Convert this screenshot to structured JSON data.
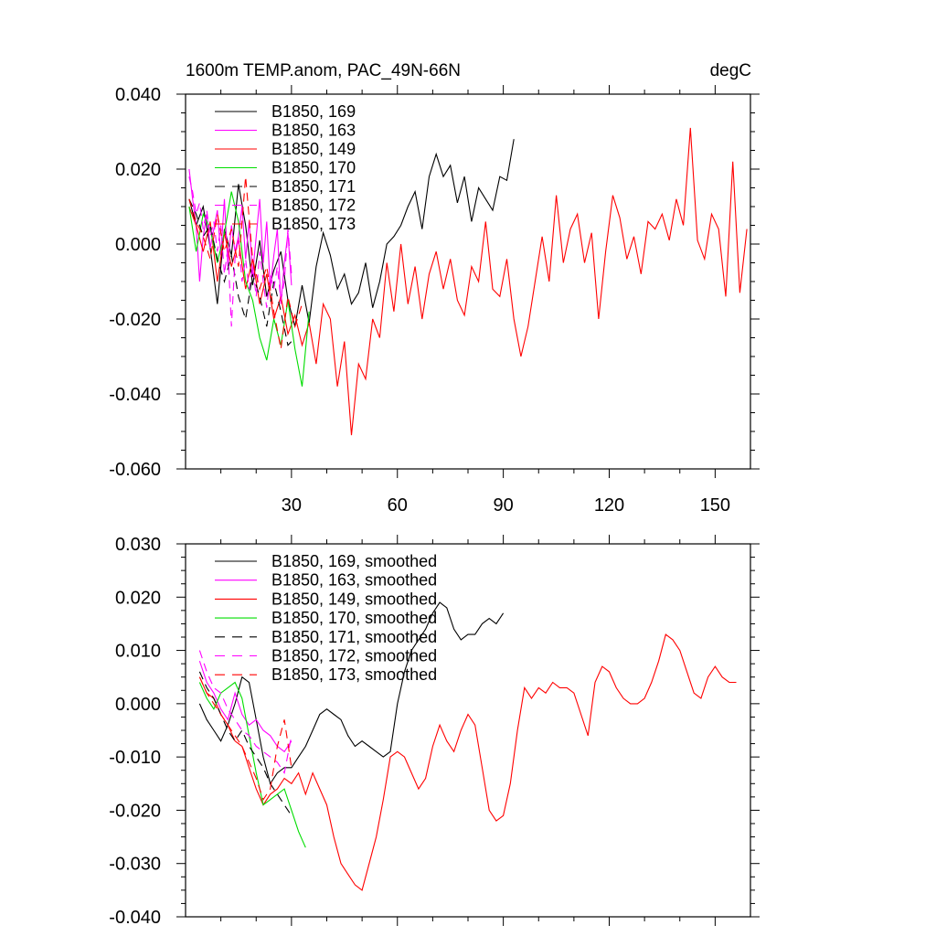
{
  "title_left": "1600m TEMP.anom, PAC_49N-66N",
  "title_right": "degC",
  "chart_data": [
    {
      "type": "line",
      "xlim": [
        0,
        160
      ],
      "ylim": [
        -0.06,
        0.04
      ],
      "x_ticks": [
        30,
        60,
        90,
        120,
        150
      ],
      "x_tick_labels": [
        "30",
        "60",
        "90",
        "120",
        "150"
      ],
      "y_ticks": [
        -0.06,
        -0.04,
        -0.02,
        0.0,
        0.02,
        0.04
      ],
      "y_tick_labels": [
        "-0.060",
        "-0.040",
        "-0.020",
        "0.000",
        "0.020",
        "0.040"
      ],
      "legend_placement": "top-left",
      "series": [
        {
          "name": "B1850, 169",
          "color": "#000000",
          "dash": "solid",
          "x": [
            1,
            3,
            5,
            7,
            9,
            11,
            13,
            15,
            17,
            19,
            21,
            23,
            25,
            27,
            29,
            31,
            33,
            35,
            37,
            39,
            41,
            43,
            45,
            47,
            49,
            51,
            53,
            55,
            57,
            59,
            61,
            63,
            65,
            67,
            69,
            71,
            73,
            75,
            77,
            79,
            81,
            83,
            85,
            87,
            89,
            91,
            93
          ],
          "values": [
            0.012,
            0.005,
            0.01,
            -0.001,
            -0.016,
            0.004,
            -0.003,
            0.016,
            0.005,
            -0.011,
            0.001,
            -0.014,
            -0.007,
            -0.002,
            -0.015,
            -0.022,
            -0.011,
            -0.021,
            -0.006,
            0.003,
            -0.003,
            -0.012,
            -0.008,
            -0.016,
            -0.013,
            -0.005,
            -0.017,
            -0.01,
            0.0,
            0.002,
            0.005,
            0.01,
            0.014,
            0.004,
            0.018,
            0.024,
            0.018,
            0.021,
            0.011,
            0.018,
            0.006,
            0.015,
            0.012,
            0.009,
            0.018,
            0.017,
            0.028
          ]
        },
        {
          "name": "B1850, 163",
          "color": "#ff00ff",
          "dash": "solid",
          "x": [
            1,
            2,
            3,
            4,
            5,
            6,
            7,
            8,
            9,
            10,
            11,
            12,
            13,
            14,
            15,
            16,
            17,
            18,
            19,
            20,
            21,
            22,
            23,
            24,
            25,
            26,
            27,
            28,
            29,
            30
          ],
          "values": [
            0.02,
            0.012,
            0.005,
            -0.01,
            0.002,
            0.008,
            -0.001,
            0.004,
            0.009,
            -0.003,
            0.012,
            -0.006,
            0.005,
            -0.002,
            0.002,
            0.01,
            -0.004,
            0.006,
            -0.008,
            0.002,
            0.012,
            -0.005,
            0.006,
            -0.012,
            -0.003,
            0.004,
            -0.016,
            -0.005,
            0.003,
            -0.011
          ]
        },
        {
          "name": "B1850, 149",
          "color": "#ff0000",
          "dash": "solid",
          "x": [
            1,
            3,
            5,
            7,
            9,
            11,
            13,
            15,
            17,
            19,
            21,
            23,
            25,
            27,
            29,
            31,
            33,
            35,
            37,
            39,
            41,
            43,
            45,
            47,
            49,
            51,
            53,
            55,
            57,
            59,
            61,
            63,
            65,
            67,
            69,
            71,
            73,
            75,
            77,
            79,
            81,
            83,
            85,
            87,
            89,
            91,
            93,
            95,
            97,
            99,
            101,
            103,
            105,
            107,
            109,
            111,
            113,
            115,
            117,
            119,
            121,
            123,
            125,
            127,
            129,
            131,
            133,
            135,
            137,
            139,
            141,
            143,
            145,
            147,
            149,
            151,
            153,
            155,
            157,
            159
          ],
          "values": [
            0.01,
            0.005,
            -0.002,
            0.006,
            -0.01,
            0.003,
            -0.006,
            0.001,
            -0.012,
            -0.004,
            -0.016,
            -0.008,
            -0.02,
            -0.014,
            -0.024,
            -0.019,
            -0.027,
            -0.021,
            -0.032,
            -0.016,
            -0.02,
            -0.038,
            -0.026,
            -0.051,
            -0.032,
            -0.036,
            -0.02,
            -0.025,
            -0.005,
            -0.018,
            0.0,
            -0.016,
            -0.006,
            -0.02,
            -0.008,
            -0.002,
            -0.012,
            -0.004,
            -0.015,
            -0.019,
            -0.006,
            -0.01,
            0.006,
            -0.012,
            -0.014,
            -0.004,
            -0.02,
            -0.03,
            -0.022,
            -0.01,
            0.002,
            -0.01,
            0.013,
            -0.005,
            0.004,
            0.008,
            -0.005,
            0.003,
            -0.02,
            -0.002,
            0.013,
            0.007,
            -0.004,
            0.002,
            -0.008,
            0.006,
            0.004,
            0.008,
            0.001,
            0.012,
            0.005,
            0.031,
            0.001,
            -0.004,
            0.008,
            0.004,
            -0.014,
            0.022,
            -0.013,
            0.004
          ]
        },
        {
          "name": "B1850, 170",
          "color": "#00dd00",
          "dash": "solid",
          "x": [
            1,
            3,
            5,
            7,
            9,
            11,
            13,
            15,
            17,
            19,
            21,
            23,
            25,
            27,
            29,
            31,
            33,
            35
          ],
          "values": [
            0.01,
            -0.002,
            0.008,
            0.004,
            -0.005,
            0.003,
            0.014,
            0.006,
            -0.01,
            -0.015,
            -0.025,
            -0.031,
            -0.02,
            -0.027,
            -0.015,
            -0.028,
            -0.038,
            -0.018
          ]
        },
        {
          "name": "B1850, 171",
          "color": "#000000",
          "dash": "dashed",
          "x": [
            1,
            3,
            5,
            7,
            9,
            11,
            13,
            15,
            17,
            19,
            21,
            23,
            25,
            27,
            29,
            31
          ],
          "values": [
            0.012,
            0.008,
            0.002,
            0.005,
            -0.004,
            -0.01,
            -0.003,
            -0.014,
            -0.02,
            -0.008,
            -0.014,
            -0.022,
            -0.01,
            -0.018,
            -0.027,
            -0.025
          ]
        },
        {
          "name": "B1850, 172",
          "color": "#ff00ff",
          "dash": "dashed",
          "x": [
            1,
            2,
            3,
            4,
            5,
            6,
            7,
            8,
            9,
            10,
            11,
            12,
            13,
            14,
            15,
            16,
            17,
            18,
            19,
            20,
            21,
            22,
            23,
            24,
            25,
            26,
            27,
            28,
            29,
            30
          ],
          "values": [
            0.018,
            0.014,
            0.008,
            0.011,
            0.004,
            0.009,
            0.002,
            0.006,
            -0.002,
            0.005,
            -0.008,
            -0.001,
            -0.022,
            -0.004,
            0.002,
            -0.01,
            -0.004,
            -0.012,
            -0.006,
            -0.014,
            -0.002,
            -0.01,
            -0.017,
            -0.008,
            -0.012,
            -0.006,
            -0.015,
            -0.01,
            0.004,
            -0.008
          ]
        },
        {
          "name": "B1850, 173",
          "color": "#ff0000",
          "dash": "dashed",
          "x": [
            1,
            3,
            5,
            7,
            9,
            11,
            13,
            15,
            17,
            19,
            21,
            23,
            25,
            27,
            29,
            31,
            33
          ],
          "values": [
            0.012,
            0.006,
            0.002,
            -0.004,
            0.008,
            -0.002,
            0.004,
            -0.006,
            0.018,
            -0.004,
            -0.012,
            -0.006,
            -0.018,
            -0.028,
            -0.014,
            -0.022,
            -0.016
          ]
        }
      ]
    },
    {
      "type": "line",
      "xlim": [
        0,
        160
      ],
      "ylim": [
        -0.04,
        0.03
      ],
      "x_ticks": [
        30,
        60,
        90,
        120,
        150
      ],
      "y_ticks": [
        -0.04,
        -0.03,
        -0.02,
        -0.01,
        0.0,
        0.01,
        0.02,
        0.03
      ],
      "y_tick_labels": [
        "-0.040",
        "-0.030",
        "-0.020",
        "-0.010",
        "0.000",
        "0.010",
        "0.020",
        "0.030"
      ],
      "legend_placement": "top-left",
      "series": [
        {
          "name": "B1850, 169, smoothed",
          "color": "#000000",
          "dash": "solid",
          "x": [
            4,
            6,
            8,
            10,
            12,
            14,
            16,
            18,
            20,
            22,
            24,
            26,
            28,
            30,
            32,
            34,
            36,
            38,
            40,
            42,
            44,
            46,
            48,
            50,
            52,
            54,
            56,
            58,
            60,
            62,
            64,
            66,
            68,
            70,
            72,
            74,
            76,
            78,
            80,
            82,
            84,
            86,
            88,
            90
          ],
          "values": [
            0.0,
            -0.003,
            -0.005,
            -0.007,
            -0.004,
            0.0,
            0.005,
            0.004,
            -0.003,
            -0.01,
            -0.015,
            -0.013,
            -0.012,
            -0.012,
            -0.01,
            -0.008,
            -0.005,
            -0.002,
            -0.001,
            -0.002,
            -0.003,
            -0.006,
            -0.008,
            -0.007,
            -0.008,
            -0.009,
            -0.01,
            -0.009,
            0.0,
            0.006,
            0.01,
            0.012,
            0.014,
            0.017,
            0.019,
            0.018,
            0.014,
            0.012,
            0.013,
            0.013,
            0.015,
            0.016,
            0.015,
            0.017
          ]
        },
        {
          "name": "B1850, 163, smoothed",
          "color": "#ff00ff",
          "dash": "solid",
          "x": [
            4,
            6,
            8,
            10,
            12,
            14,
            16,
            18,
            20,
            22,
            24,
            26,
            28,
            30
          ],
          "values": [
            0.008,
            0.004,
            0.002,
            -0.001,
            -0.003,
            0.002,
            -0.002,
            -0.004,
            -0.003,
            -0.005,
            -0.006,
            -0.008,
            -0.009,
            -0.007
          ]
        },
        {
          "name": "B1850, 149, smoothed",
          "color": "#ff0000",
          "dash": "solid",
          "x": [
            4,
            6,
            8,
            10,
            12,
            14,
            16,
            18,
            20,
            22,
            24,
            26,
            28,
            30,
            32,
            34,
            36,
            38,
            40,
            42,
            44,
            46,
            48,
            50,
            52,
            54,
            56,
            58,
            60,
            62,
            64,
            66,
            68,
            70,
            72,
            74,
            76,
            78,
            80,
            82,
            84,
            86,
            88,
            90,
            92,
            94,
            96,
            98,
            100,
            102,
            104,
            106,
            108,
            110,
            112,
            114,
            116,
            118,
            120,
            122,
            124,
            126,
            128,
            130,
            132,
            134,
            136,
            138,
            140,
            142,
            144,
            146,
            148,
            150,
            152,
            154,
            156
          ],
          "values": [
            0.005,
            0.002,
            0.001,
            -0.002,
            -0.004,
            -0.007,
            -0.008,
            -0.012,
            -0.016,
            -0.019,
            -0.017,
            -0.016,
            -0.014,
            -0.015,
            -0.013,
            -0.017,
            -0.013,
            -0.016,
            -0.019,
            -0.025,
            -0.03,
            -0.032,
            -0.034,
            -0.035,
            -0.03,
            -0.025,
            -0.018,
            -0.01,
            -0.009,
            -0.01,
            -0.013,
            -0.016,
            -0.014,
            -0.008,
            -0.004,
            -0.007,
            -0.009,
            -0.005,
            -0.002,
            -0.004,
            -0.012,
            -0.02,
            -0.022,
            -0.021,
            -0.015,
            -0.005,
            0.003,
            0.001,
            0.003,
            0.002,
            0.004,
            0.003,
            0.003,
            0.002,
            -0.002,
            -0.006,
            0.004,
            0.007,
            0.006,
            0.003,
            0.001,
            0.0,
            0.0,
            0.001,
            0.004,
            0.008,
            0.013,
            0.012,
            0.01,
            0.006,
            0.002,
            0.001,
            0.005,
            0.007,
            0.005,
            0.004,
            0.004
          ]
        },
        {
          "name": "B1850, 170, smoothed",
          "color": "#00dd00",
          "dash": "solid",
          "x": [
            4,
            6,
            8,
            10,
            12,
            14,
            16,
            18,
            20,
            22,
            24,
            26,
            28,
            30,
            32,
            34
          ],
          "values": [
            0.004,
            0.001,
            -0.001,
            0.002,
            0.003,
            0.004,
            0.001,
            -0.006,
            -0.013,
            -0.019,
            -0.018,
            -0.017,
            -0.016,
            -0.02,
            -0.024,
            -0.027
          ]
        },
        {
          "name": "B1850, 171, smoothed",
          "color": "#000000",
          "dash": "dashed",
          "x": [
            4,
            6,
            8,
            10,
            12,
            14,
            16,
            18,
            20,
            22,
            24,
            26,
            28,
            30
          ],
          "values": [
            0.006,
            0.003,
            0.001,
            -0.002,
            -0.005,
            -0.007,
            -0.005,
            -0.008,
            -0.01,
            -0.012,
            -0.015,
            -0.017,
            -0.019,
            -0.021
          ]
        },
        {
          "name": "B1850, 172, smoothed",
          "color": "#ff00ff",
          "dash": "dashed",
          "x": [
            4,
            6,
            8,
            10,
            12,
            14,
            16,
            18,
            20,
            22,
            24,
            26,
            28,
            30
          ],
          "values": [
            0.01,
            0.006,
            0.003,
            0.002,
            -0.001,
            -0.003,
            -0.005,
            -0.006,
            -0.008,
            -0.009,
            -0.01,
            -0.011,
            -0.013,
            -0.006
          ]
        },
        {
          "name": "B1850, 173, smoothed",
          "color": "#ff0000",
          "dash": "dashed",
          "x": [
            4,
            6,
            8,
            10,
            12,
            14,
            16,
            18,
            20,
            22,
            24,
            26,
            28,
            30
          ],
          "values": [
            0.005,
            0.002,
            0.0,
            -0.002,
            -0.004,
            -0.006,
            -0.008,
            -0.011,
            -0.014,
            -0.018,
            -0.016,
            -0.008,
            -0.003,
            -0.012
          ]
        }
      ]
    }
  ]
}
